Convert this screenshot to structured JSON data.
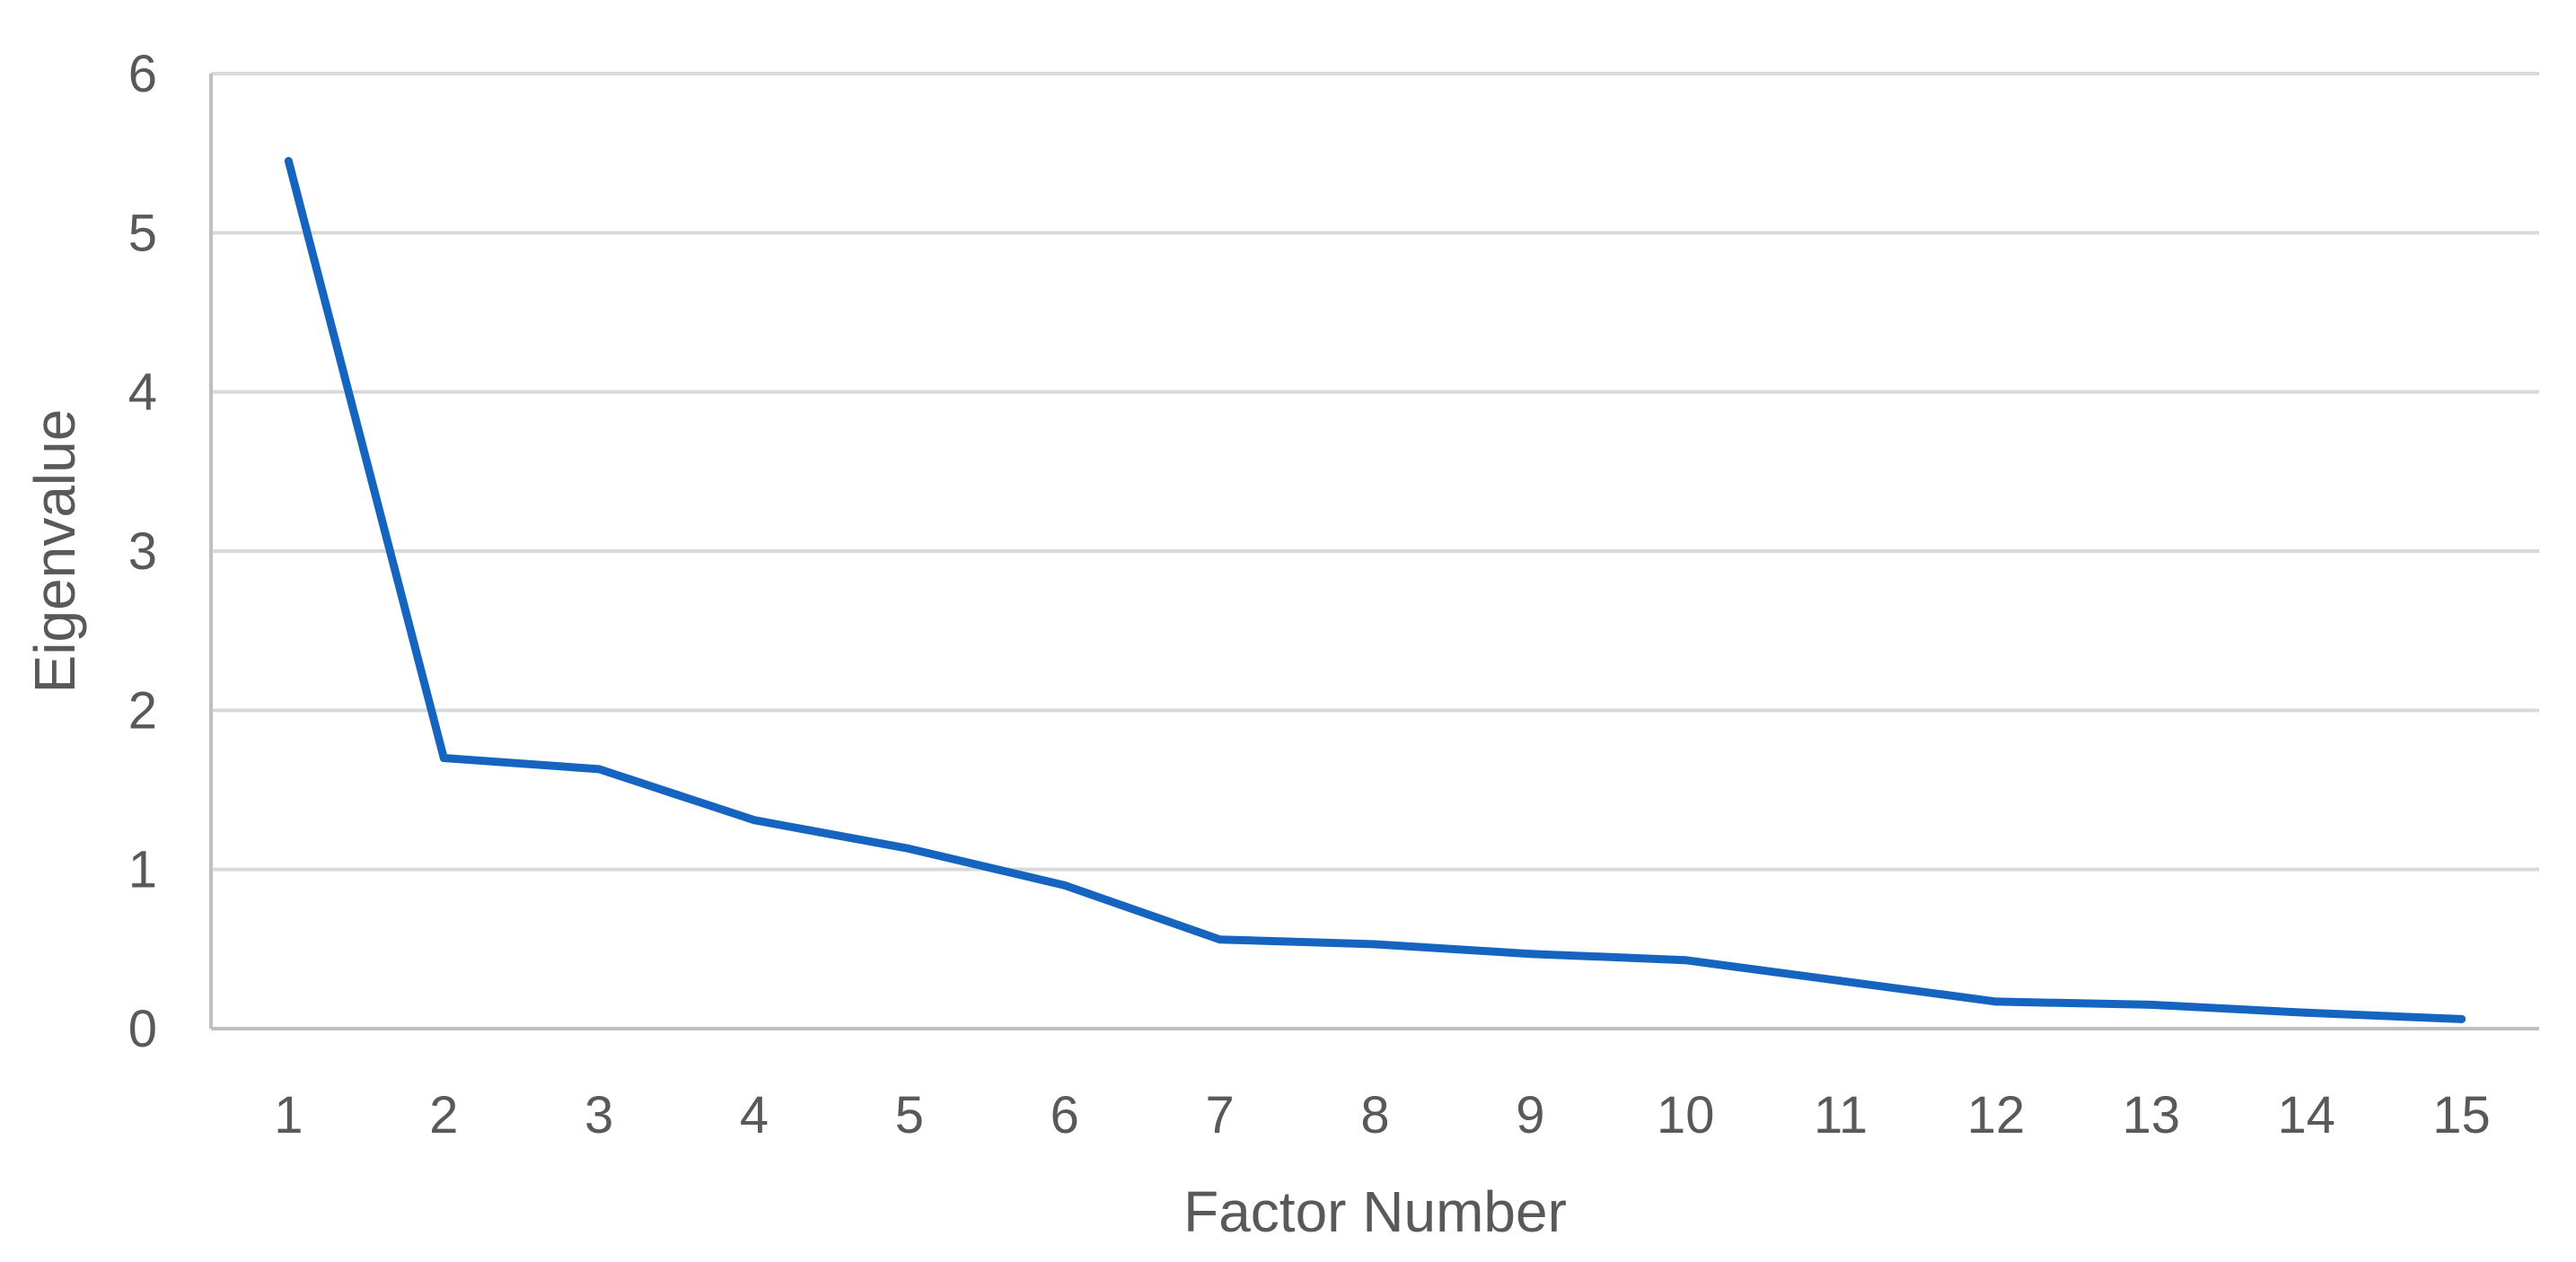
{
  "chart_data": {
    "type": "line",
    "title": "",
    "xlabel": "Factor Number",
    "ylabel": "Eigenvalue",
    "categories": [
      "1",
      "2",
      "3",
      "4",
      "5",
      "6",
      "7",
      "8",
      "9",
      "10",
      "11",
      "12",
      "13",
      "14",
      "15"
    ],
    "series": [
      {
        "values": [
          5.45,
          1.7,
          1.63,
          1.31,
          1.13,
          0.9,
          0.56,
          0.53,
          0.47,
          0.43,
          0.3,
          0.17,
          0.15,
          0.1,
          0.06
        ],
        "color": "#1565c0"
      }
    ],
    "ylim": [
      0,
      6
    ],
    "yticks": [
      "0",
      "1",
      "2",
      "3",
      "4",
      "5",
      "6"
    ],
    "grid": true,
    "legend": "none"
  }
}
